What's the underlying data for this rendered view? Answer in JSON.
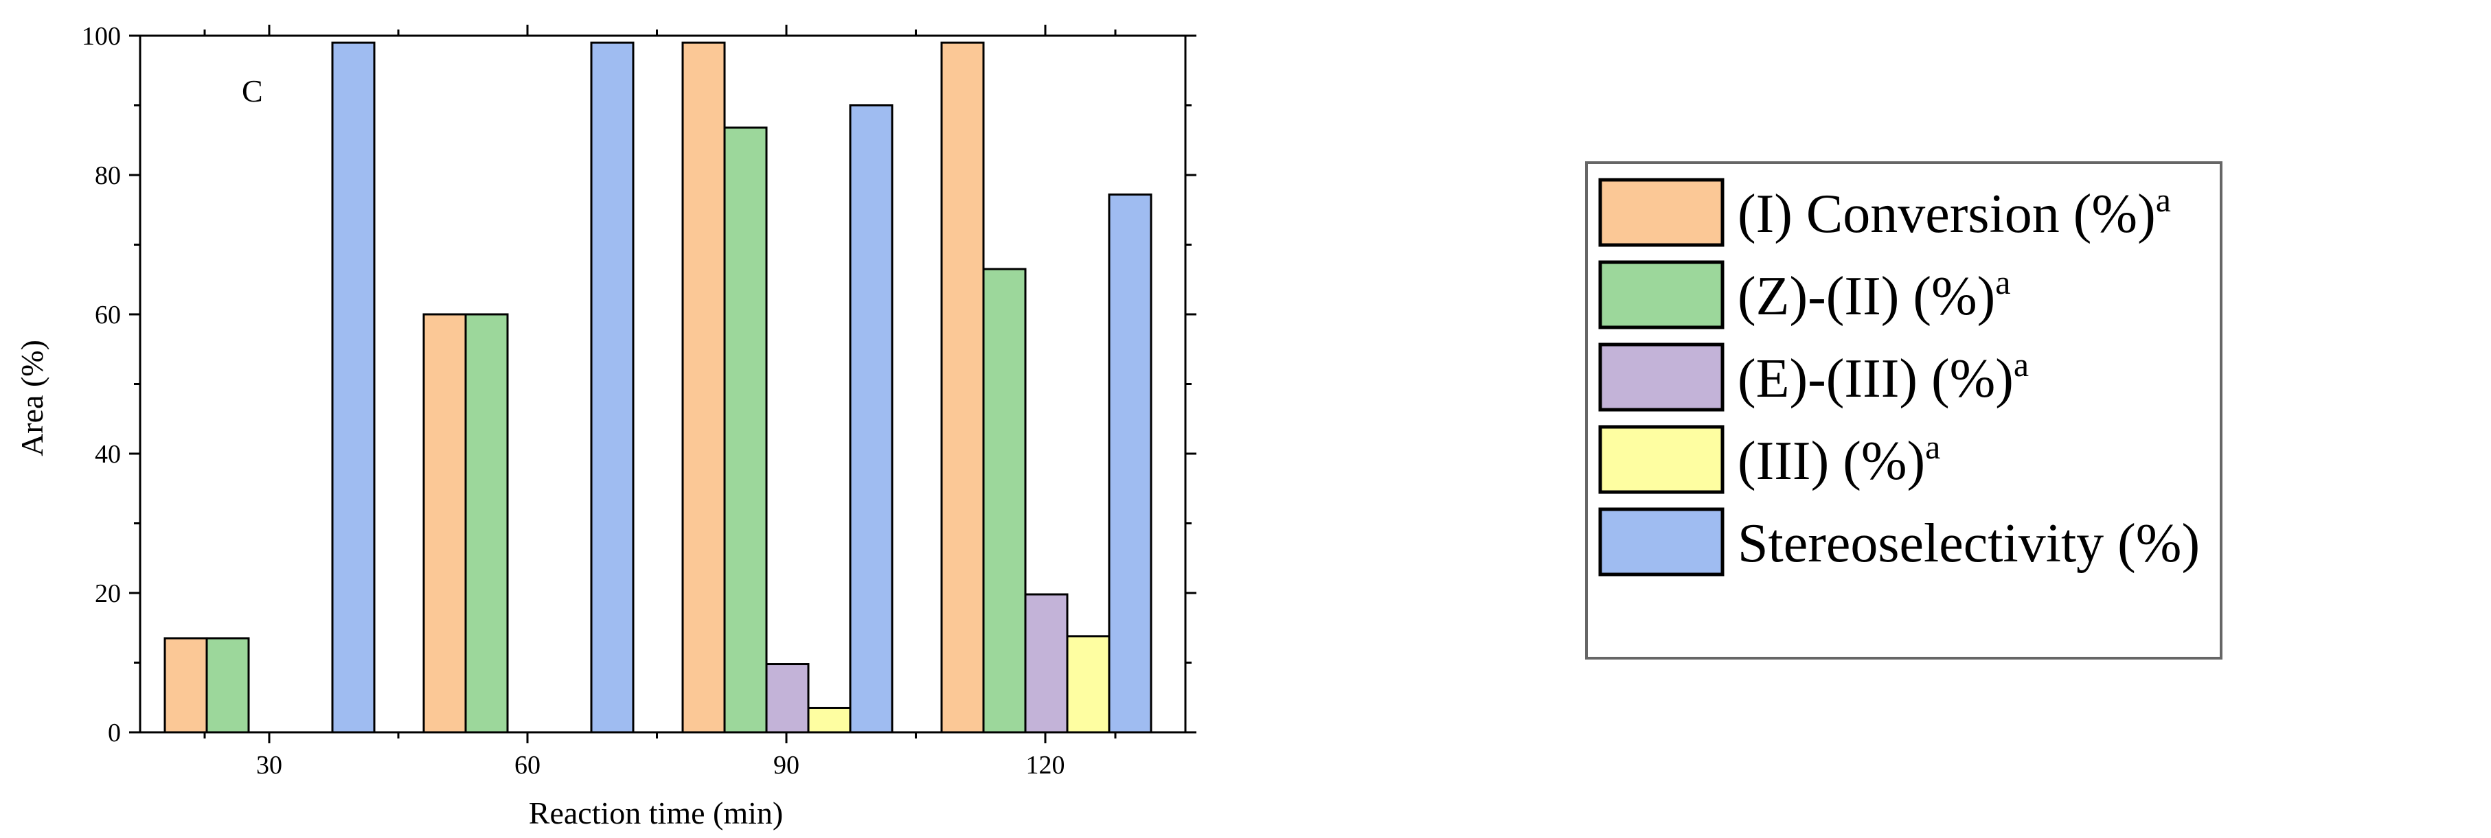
{
  "chart_data": {
    "type": "bar",
    "panel_label": "C",
    "xlabel": "Reaction time (min)",
    "ylabel": "Area (%)",
    "ylim": [
      0,
      100
    ],
    "yticks": [
      "0",
      "20",
      "40",
      "60",
      "80",
      "100"
    ],
    "categories": [
      "30",
      "60",
      "90",
      "120"
    ],
    "series": [
      {
        "name": "(I) Conversion (%)",
        "sup": "a",
        "color": "#fbc896",
        "values": [
          13.5,
          60,
          99,
          99
        ]
      },
      {
        "name": "(Z)-(II) (%)",
        "sup": "a",
        "color": "#9cd79b",
        "values": [
          13.5,
          60,
          86.8,
          66.5
        ]
      },
      {
        "name": "(E)-(III) (%)",
        "sup": "a",
        "color": "#c3b3d8",
        "values": [
          0,
          0,
          9.8,
          19.8
        ]
      },
      {
        "name": "(III) (%)",
        "sup": "a",
        "color": "#fefea1",
        "values": [
          0,
          0,
          3.5,
          13.8
        ]
      },
      {
        "name": "Stereoselectivity (%)",
        "sup": "",
        "color": "#9fbcf1",
        "values": [
          99,
          99,
          90,
          77.2
        ]
      }
    ],
    "grid": false,
    "legend_position": "right, outside plot"
  }
}
